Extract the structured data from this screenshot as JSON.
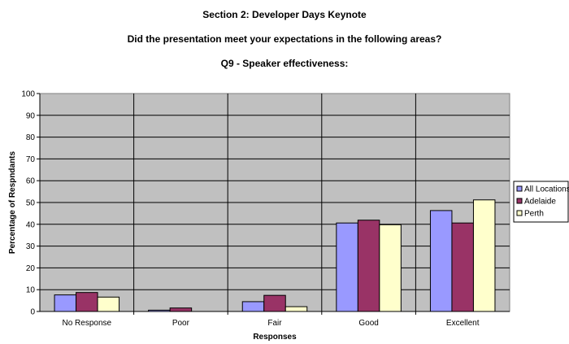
{
  "chart_data": {
    "type": "bar",
    "titles": [
      "Section 2: Developer Days Keynote",
      "Did the presentation meet your expectations in the following areas?",
      "Q9 - Speaker effectiveness:"
    ],
    "xlabel": "Responses",
    "ylabel": "Percentage of Respndants",
    "ylim": [
      0,
      100
    ],
    "ytick_step": 10,
    "yticks": [
      "0",
      "10",
      "20",
      "30",
      "40",
      "50",
      "60",
      "70",
      "80",
      "90",
      "100"
    ],
    "grid": true,
    "legend_position": "right",
    "categories": [
      "No Response",
      "Poor",
      "Fair",
      "Good",
      "Excellent"
    ],
    "series": [
      {
        "name": "All Locations",
        "color": "#9999ff",
        "values": [
          7.6,
          0.6,
          4.5,
          40.6,
          46.3
        ]
      },
      {
        "name": "Adelaide",
        "color": "#993366",
        "values": [
          8.7,
          1.6,
          7.4,
          41.9,
          40.6
        ]
      },
      {
        "name": "Perth",
        "color": "#ffffcc",
        "values": [
          6.6,
          0.0,
          2.2,
          39.8,
          51.2
        ]
      }
    ],
    "plot_background": "#c0c0c0"
  }
}
